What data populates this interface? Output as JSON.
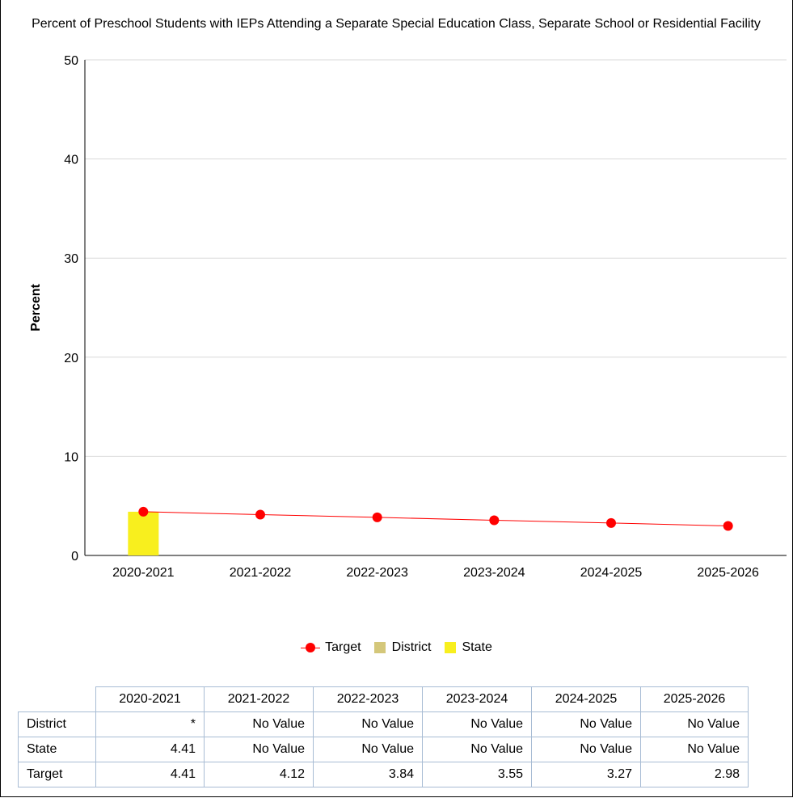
{
  "chart_data": {
    "type": "bar",
    "title": "Percent of Preschool Students with IEPs Attending a Separate Special Education Class, Separate School or Residential Facility",
    "xlabel": "",
    "ylabel": "Percent",
    "ylim": [
      0,
      50
    ],
    "yticks": [
      0,
      10,
      20,
      30,
      40,
      50
    ],
    "grid": true,
    "legend_position": "bottom",
    "categories": [
      "2020-2021",
      "2021-2022",
      "2022-2023",
      "2023-2024",
      "2024-2025",
      "2025-2026"
    ],
    "series": [
      {
        "name": "Target",
        "type": "line",
        "color": "#ff0000",
        "values": [
          4.41,
          4.12,
          3.84,
          3.55,
          3.27,
          2.98
        ]
      },
      {
        "name": "District",
        "type": "bar",
        "color": "#d4c77a",
        "values": [
          null,
          null,
          null,
          null,
          null,
          null
        ]
      },
      {
        "name": "State",
        "type": "bar",
        "color": "#f8ef1e",
        "values": [
          4.41,
          null,
          null,
          null,
          null,
          null
        ]
      }
    ]
  },
  "table": {
    "columns": [
      "2020-2021",
      "2021-2022",
      "2022-2023",
      "2023-2024",
      "2024-2025",
      "2025-2026"
    ],
    "rows": [
      {
        "label": "District",
        "cells": [
          "*",
          "No Value",
          "No Value",
          "No Value",
          "No Value",
          "No Value"
        ]
      },
      {
        "label": "State",
        "cells": [
          "4.41",
          "No Value",
          "No Value",
          "No Value",
          "No Value",
          "No Value"
        ]
      },
      {
        "label": "Target",
        "cells": [
          "4.41",
          "4.12",
          "3.84",
          "3.55",
          "3.27",
          "2.98"
        ]
      }
    ]
  }
}
